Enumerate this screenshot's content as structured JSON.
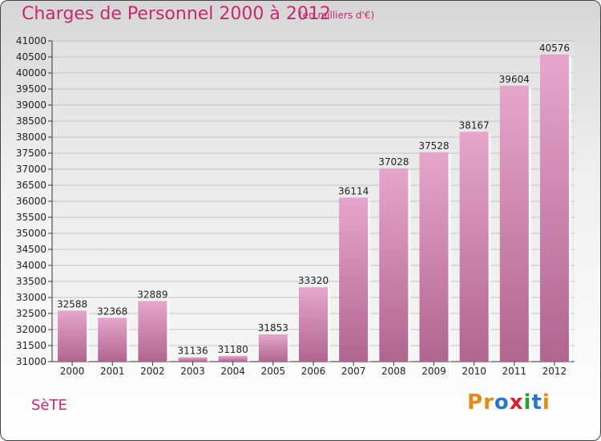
{
  "chart_data": {
    "type": "bar",
    "title": "Charges de Personnel 2000 à 2012",
    "subtitle": "(en milliers d'€)",
    "categories": [
      "2000",
      "2001",
      "2002",
      "2003",
      "2004",
      "2005",
      "2006",
      "2007",
      "2008",
      "2009",
      "2010",
      "2011",
      "2012"
    ],
    "values": [
      32588,
      32368,
      32889,
      31136,
      31180,
      31853,
      33320,
      36114,
      37028,
      37528,
      38167,
      39604,
      40576
    ],
    "ylim": [
      31000,
      41000
    ],
    "ytick_step": 500,
    "grid": true,
    "bar_color": "#d58ab3"
  },
  "footer": {
    "city": "SèTE",
    "logo": [
      "P",
      "r",
      "o",
      "x",
      "i",
      "t",
      "i"
    ],
    "logo_colors": [
      "#e48a17",
      "#e48a17",
      "#2a76c9",
      "#d2232a",
      "#2a9d3a",
      "#2a76c9",
      "#e48a17"
    ]
  }
}
